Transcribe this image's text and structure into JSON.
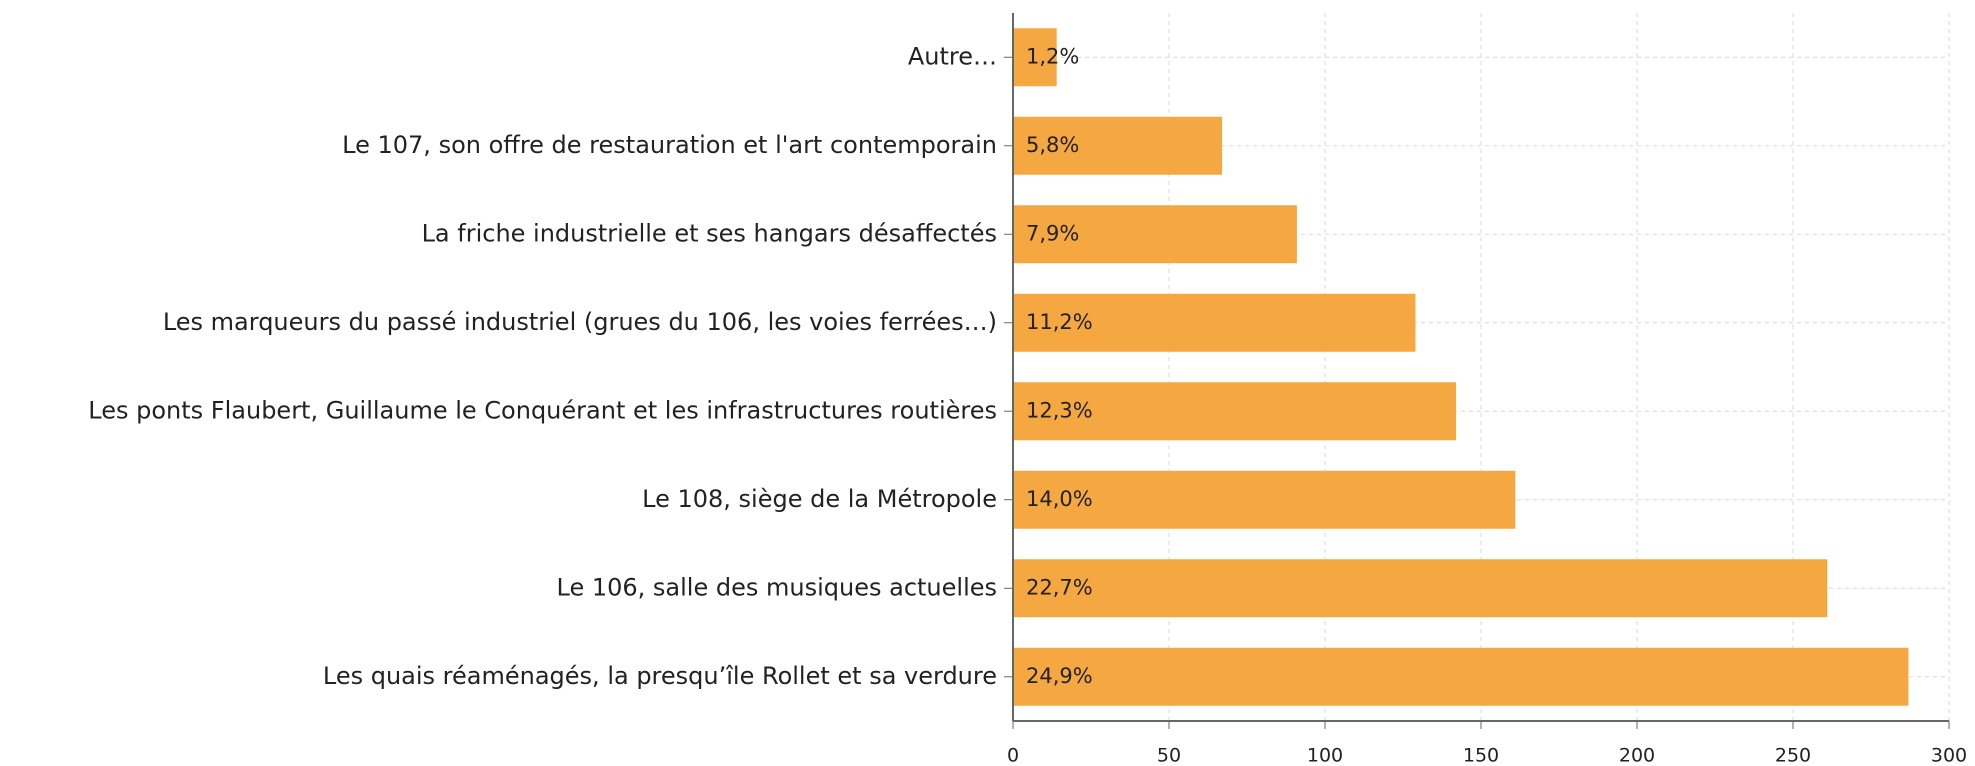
{
  "chart_data": {
    "type": "bar",
    "orientation": "horizontal",
    "categories": [
      "Autre…",
      "Le 107, son offre de restauration et l'art contemporain",
      "La friche industrielle et ses hangars désaffectés",
      "Les marqueurs du passé industriel (grues du 106, les voies ferrées…)",
      "Les ponts Flaubert, Guillaume le Conquérant et les infrastructures routières",
      "Le 108, siège de la Métropole",
      "Le 106, salle des musiques actuelles",
      "Les quais réaménagés, la presqu’île Rollet et sa verdure"
    ],
    "values": [
      14,
      67,
      91,
      129,
      142,
      161,
      261,
      287
    ],
    "percent_values": [
      1.2,
      5.8,
      7.9,
      11.2,
      12.3,
      14.0,
      22.7,
      24.9
    ],
    "percent_labels": [
      "1,2%",
      "5,8%",
      "7,9%",
      "11,2%",
      "12,3%",
      "14,0%",
      "22,7%",
      "24,9%"
    ],
    "color": "#f5a742",
    "xlim": [
      0,
      300
    ],
    "xticks": [
      0,
      50,
      100,
      150,
      200,
      250,
      300
    ],
    "grid": true
  }
}
